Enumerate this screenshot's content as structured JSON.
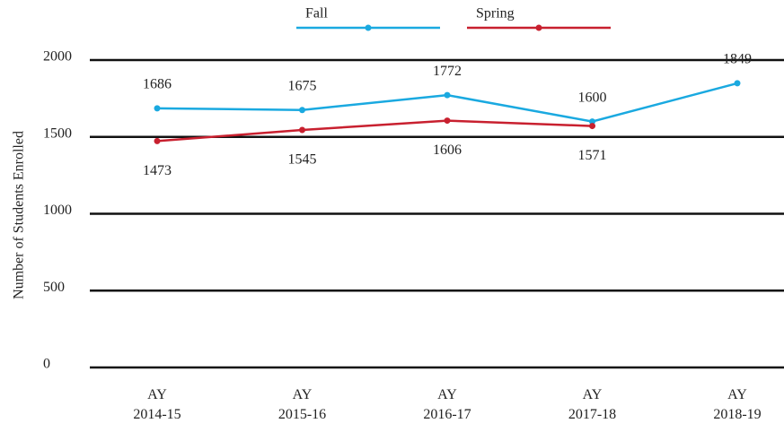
{
  "chart_data": {
    "type": "line",
    "y_label": "Number of Students Enrolled",
    "categories": [
      "AY 2014-15",
      "AY 2015-16",
      "AY 2016-17",
      "AY 2017-18",
      "AY 2018-19"
    ],
    "series": [
      {
        "name": "Fall",
        "color": "#1aa9e0",
        "values": [
          1686,
          1675,
          1772,
          1600,
          1849
        ]
      },
      {
        "name": "Spring",
        "color": "#c8202f",
        "values": [
          1473,
          1545,
          1606,
          1571,
          null
        ]
      }
    ],
    "ylim": [
      0,
      2000
    ],
    "yticks": [
      0,
      500,
      1000,
      1500,
      2000
    ],
    "grid": true,
    "legend": "top"
  }
}
